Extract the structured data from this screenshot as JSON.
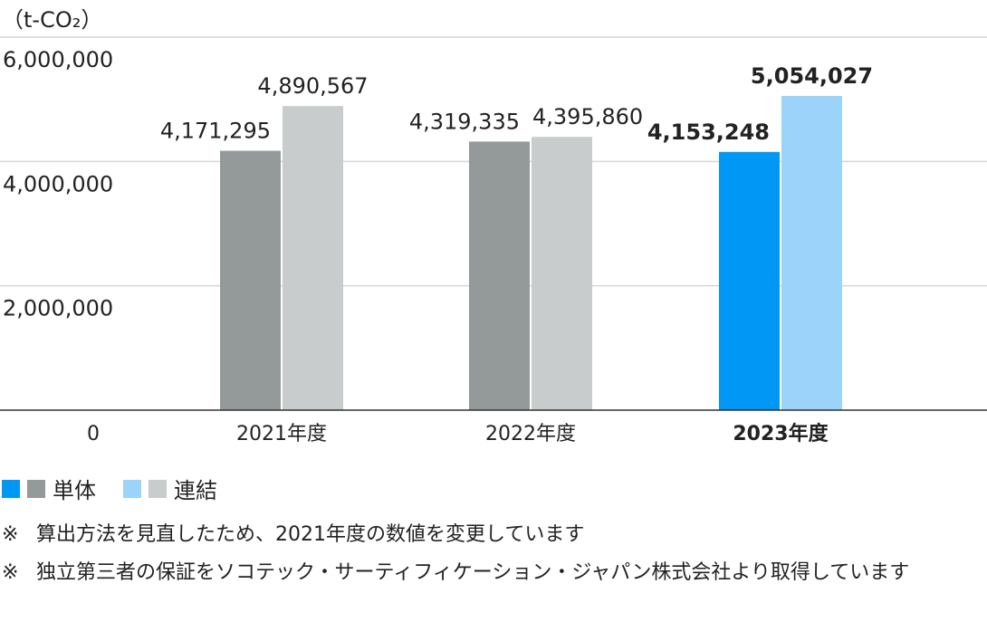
{
  "chart_data": {
    "type": "bar",
    "unit_label": "（t-CO₂）",
    "categories": [
      "2021年度",
      "2022年度",
      "2023年度"
    ],
    "highlight_category": "2023年度",
    "ylim": [
      0,
      6000000
    ],
    "yticks": [
      {
        "v": 0,
        "label": "0"
      },
      {
        "v": 2000000,
        "label": "2,000,000"
      },
      {
        "v": 4000000,
        "label": "4,000,000"
      },
      {
        "v": 6000000,
        "label": "6,000,000"
      }
    ],
    "series": [
      {
        "name": "単体",
        "values": [
          4171295,
          4319335,
          4153248
        ],
        "labels": [
          "4,171,295",
          "4,319,335",
          "4,153,248"
        ],
        "color": "#949999",
        "highlight_color": "#0097f5"
      },
      {
        "name": "連結",
        "values": [
          4890567,
          4395860,
          5054027
        ],
        "labels": [
          "4,890,567",
          "4,395,860",
          "5,054,027"
        ],
        "color": "#c8cccc",
        "highlight_color": "#9bd3fb"
      }
    ],
    "grid": true,
    "legend_position": "bottom-left"
  },
  "notes": [
    {
      "mark": "※",
      "text": "算出方法を見直したため、2021年度の数値を変更しています"
    },
    {
      "mark": "※",
      "text": "独立第三者の保証をソコテック・サーティフィケーション・ジャパン株式会社より取得しています"
    }
  ]
}
